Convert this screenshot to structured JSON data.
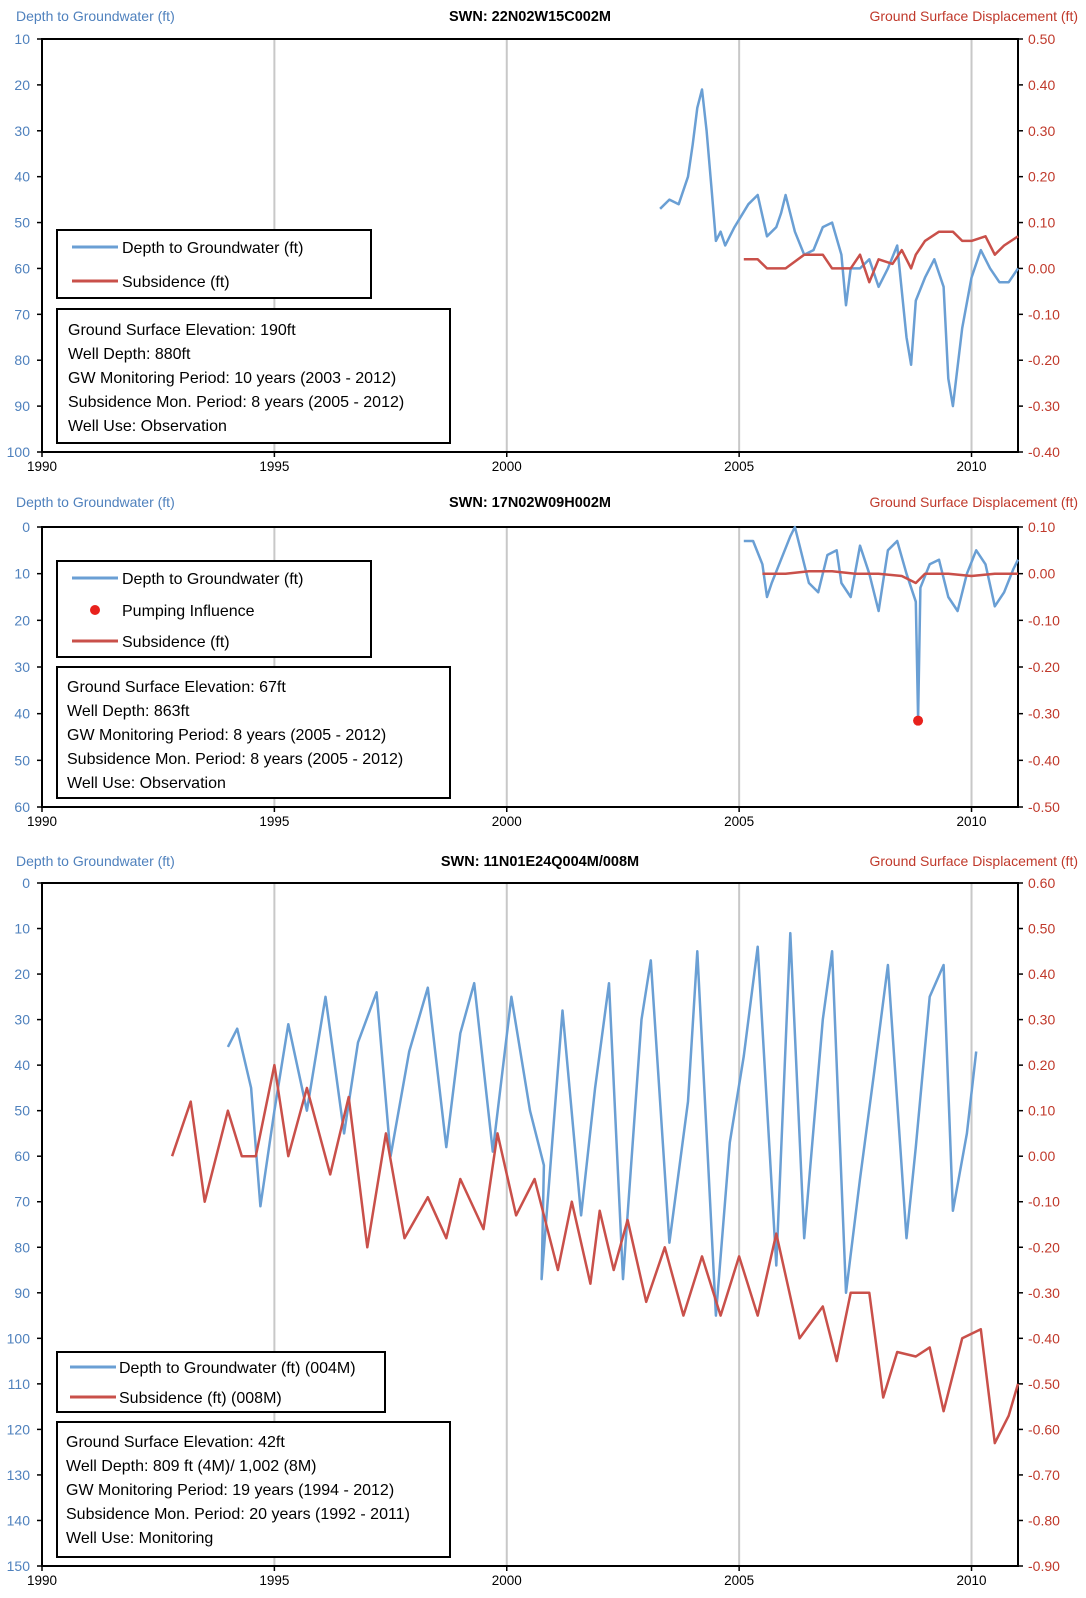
{
  "figure": {
    "axis_left_label": "Depth to Groundwater (ft)",
    "axis_right_label": "Ground Surface Displacement (ft)",
    "colors": {
      "groundwater": "#6a9fd4",
      "subsidence": "#c9504a",
      "pumping": "#e8211c",
      "left_axis_text": "#4f81bd",
      "right_axis_text": "#c0392b"
    }
  },
  "chart_data": [
    {
      "type": "line",
      "title": "SWN: 22N02W15C002M",
      "ylabel_left": "Depth to Groundwater (ft)",
      "ylabel_right": "Ground Surface Displacement (ft)",
      "xlim": [
        1990,
        2011
      ],
      "ylim_left": [
        100,
        10
      ],
      "ylim_right": [
        -0.4,
        0.5
      ],
      "x_ticks": [
        1990,
        1995,
        2000,
        2005,
        2010
      ],
      "y_ticks_left": [
        10,
        20,
        30,
        40,
        50,
        60,
        70,
        80,
        90,
        100
      ],
      "y_ticks_right": [
        "0.50",
        "0.40",
        "0.30",
        "0.20",
        "0.10",
        "0.00",
        "-0.10",
        "-0.20",
        "-0.30",
        "-0.40"
      ],
      "grid": "vertical",
      "legend": [
        "Depth to Groundwater (ft)",
        "Subsidence (ft)"
      ],
      "info": [
        "Ground Surface Elevation: 190ft",
        "Well Depth: 880ft",
        "GW Monitoring Period: 10 years (2003 - 2012)",
        "Subsidence Mon. Period: 8 years (2005 - 2012)",
        "Well Use: Observation"
      ],
      "series": [
        {
          "name": "Depth to Groundwater (ft)",
          "axis": "left",
          "x": [
            2003.3,
            2003.5,
            2003.7,
            2003.9,
            2004.0,
            2004.1,
            2004.2,
            2004.3,
            2004.4,
            2004.5,
            2004.6,
            2004.7,
            2004.8,
            2004.9,
            2005.2,
            2005.4,
            2005.6,
            2005.8,
            2005.9,
            2006.0,
            2006.2,
            2006.4,
            2006.6,
            2006.8,
            2007.0,
            2007.2,
            2007.3,
            2007.4,
            2007.6,
            2007.8,
            2008.0,
            2008.2,
            2008.4,
            2008.6,
            2008.7,
            2008.8,
            2009.0,
            2009.2,
            2009.4,
            2009.5,
            2009.6,
            2009.8,
            2010.0,
            2010.2,
            2010.4,
            2010.6,
            2010.8,
            2011.0
          ],
          "y": [
            47,
            45,
            46,
            40,
            33,
            25,
            21,
            30,
            42,
            54,
            52,
            55,
            53,
            51,
            46,
            44,
            53,
            51,
            48,
            44,
            52,
            57,
            56,
            51,
            50,
            57,
            68,
            60,
            60,
            58,
            64,
            60,
            55,
            75,
            81,
            67,
            62,
            58,
            64,
            84,
            90,
            73,
            62,
            56,
            60,
            63,
            63,
            60
          ]
        },
        {
          "name": "Subsidence (ft)",
          "axis": "right",
          "x": [
            2005.1,
            2005.4,
            2005.6,
            2006.0,
            2006.4,
            2006.8,
            2007.0,
            2007.4,
            2007.6,
            2007.8,
            2008.0,
            2008.3,
            2008.5,
            2008.7,
            2008.8,
            2009.0,
            2009.3,
            2009.6,
            2009.8,
            2010.0,
            2010.3,
            2010.5,
            2010.7,
            2011.0
          ],
          "y": [
            0.02,
            0.02,
            0.0,
            0.0,
            0.03,
            0.03,
            0.0,
            0.0,
            0.03,
            -0.03,
            0.02,
            0.01,
            0.04,
            0.0,
            0.03,
            0.06,
            0.08,
            0.08,
            0.06,
            0.06,
            0.07,
            0.03,
            0.05,
            0.07
          ]
        }
      ]
    },
    {
      "type": "line",
      "title": "SWN: 17N02W09H002M",
      "ylabel_left": "Depth to Groundwater (ft)",
      "ylabel_right": "Ground Surface Displacement (ft)",
      "xlim": [
        1990,
        2011
      ],
      "ylim_left": [
        60,
        0
      ],
      "ylim_right": [
        -0.5,
        0.1
      ],
      "x_ticks": [
        1990,
        1995,
        2000,
        2005,
        2010
      ],
      "y_ticks_left": [
        0,
        10,
        20,
        30,
        40,
        50,
        60
      ],
      "y_ticks_right": [
        "0.10",
        "0.00",
        "-0.10",
        "-0.20",
        "-0.30",
        "-0.40",
        "-0.50"
      ],
      "grid": "vertical",
      "legend": [
        "Depth to Groundwater (ft)",
        "Pumping Influence",
        "Subsidence (ft)"
      ],
      "info": [
        "Ground Surface Elevation: 67ft",
        "Well Depth: 863ft",
        "GW Monitoring Period: 8 years (2005 - 2012)",
        "Subsidence Mon. Period: 8 years (2005 - 2012)",
        "Well Use: Observation"
      ],
      "series": [
        {
          "name": "Depth to Groundwater (ft)",
          "axis": "left",
          "x": [
            2005.1,
            2005.3,
            2005.5,
            2005.6,
            2005.7,
            2005.9,
            2006.1,
            2006.2,
            2006.3,
            2006.5,
            2006.7,
            2006.9,
            2007.1,
            2007.2,
            2007.4,
            2007.6,
            2007.8,
            2008.0,
            2008.2,
            2008.4,
            2008.6,
            2008.8,
            2008.85,
            2008.9,
            2009.1,
            2009.3,
            2009.5,
            2009.7,
            2009.9,
            2010.1,
            2010.3,
            2010.5,
            2010.7,
            2010.9,
            2011.0
          ],
          "y": [
            3,
            3,
            8,
            15,
            12,
            7,
            2,
            0,
            4,
            12,
            14,
            6,
            5,
            12,
            15,
            4,
            10,
            18,
            5,
            3,
            10,
            16,
            41,
            13,
            8,
            7,
            15,
            18,
            10,
            5,
            8,
            17,
            14,
            9,
            7
          ]
        },
        {
          "name": "Subsidence (ft)",
          "axis": "right",
          "x": [
            2005.5,
            2006.0,
            2006.5,
            2007.0,
            2007.5,
            2008.0,
            2008.5,
            2008.8,
            2009.0,
            2009.5,
            2010.0,
            2010.5,
            2011.0
          ],
          "y": [
            0.0,
            0.0,
            0.005,
            0.005,
            0.0,
            0.0,
            -0.005,
            -0.02,
            0.0,
            0.0,
            -0.005,
            0.0,
            0.0
          ]
        },
        {
          "name": "Pumping Influence",
          "axis": "left",
          "type": "scatter",
          "x": [
            2008.85
          ],
          "y": [
            41.5
          ]
        }
      ]
    },
    {
      "type": "line",
      "title": "SWN: 11N01E24Q004M/008M",
      "ylabel_left": "Depth to Groundwater (ft)",
      "ylabel_right": "Ground Surface Displacement (ft)",
      "xlim": [
        1990,
        2011
      ],
      "ylim_left": [
        150,
        0
      ],
      "ylim_right": [
        -0.9,
        0.6
      ],
      "x_ticks": [
        1990,
        1995,
        2000,
        2005,
        2010
      ],
      "y_ticks_left": [
        0,
        10,
        20,
        30,
        40,
        50,
        60,
        70,
        80,
        90,
        100,
        110,
        120,
        130,
        140,
        150
      ],
      "y_ticks_right": [
        "0.60",
        "0.50",
        "0.40",
        "0.30",
        "0.20",
        "0.10",
        "0.00",
        "-0.10",
        "-0.20",
        "-0.30",
        "-0.40",
        "-0.50",
        "-0.60",
        "-0.70",
        "-0.80",
        "-0.90"
      ],
      "grid": "vertical",
      "legend": [
        "Depth to Groundwater (ft) (004M)",
        "Subsidence (ft) (008M)"
      ],
      "info": [
        "Ground Surface Elevation: 42ft",
        "Well Depth: 809 ft (4M)/ 1,002 (8M)",
        "GW Monitoring Period: 19 years (1994 - 2012)",
        "Subsidence Mon. Period: 20 years (1992 - 2011)",
        "Well Use: Monitoring"
      ],
      "series": [
        {
          "name": "Depth to Groundwater (ft) (004M)",
          "axis": "left",
          "x": [
            1994.0,
            1994.2,
            1994.5,
            1994.7,
            1995.0,
            1995.3,
            1995.7,
            1996.1,
            1996.5,
            1996.8,
            1997.2,
            1997.5,
            1997.9,
            1998.3,
            1998.7,
            1999.0,
            1999.3,
            1999.7,
            2000.1,
            2000.5,
            2000.8,
            2000.75,
            2001.2,
            2001.6,
            2001.9,
            2002.2,
            2002.5,
            2002.9,
            2003.1,
            2003.5,
            2003.9,
            2004.1,
            2004.5,
            2004.8,
            2005.1,
            2005.4,
            2005.8,
            2006.1,
            2006.4,
            2006.8,
            2007.0,
            2007.3,
            2007.6,
            2007.9,
            2008.2,
            2008.6,
            2008.8,
            2009.1,
            2009.4,
            2009.6,
            2009.9,
            2010.1
          ],
          "y": [
            36,
            32,
            45,
            71,
            50,
            31,
            50,
            25,
            55,
            35,
            24,
            60,
            37,
            23,
            58,
            33,
            22,
            59,
            25,
            50,
            62,
            87,
            28,
            73,
            45,
            22,
            87,
            30,
            17,
            79,
            48,
            15,
            95,
            57,
            38,
            14,
            84,
            11,
            78,
            30,
            15,
            90,
            65,
            42,
            18,
            78,
            58,
            25,
            18,
            72,
            55,
            37
          ]
        },
        {
          "name": "Subsidence (ft) (008M)",
          "axis": "right",
          "x": [
            1992.8,
            1993.2,
            1993.5,
            1994.0,
            1994.3,
            1994.6,
            1995.0,
            1995.3,
            1995.7,
            1996.2,
            1996.6,
            1997.0,
            1997.4,
            1997.8,
            1998.3,
            1998.7,
            1999.0,
            1999.5,
            1999.8,
            2000.2,
            2000.6,
            2001.1,
            2001.4,
            2001.8,
            2002.0,
            2002.3,
            2002.6,
            2003.0,
            2003.4,
            2003.8,
            2004.2,
            2004.6,
            2005.0,
            2005.4,
            2005.8,
            2006.3,
            2006.8,
            2007.1,
            2007.4,
            2007.8,
            2008.1,
            2008.4,
            2008.8,
            2009.1,
            2009.4,
            2009.8,
            2010.2,
            2010.5,
            2010.8,
            2011.0
          ],
          "y": [
            0.0,
            0.12,
            -0.1,
            0.1,
            0.0,
            0.0,
            0.2,
            0.0,
            0.15,
            -0.04,
            0.13,
            -0.2,
            0.05,
            -0.18,
            -0.09,
            -0.18,
            -0.05,
            -0.16,
            0.05,
            -0.13,
            -0.05,
            -0.25,
            -0.1,
            -0.28,
            -0.12,
            -0.25,
            -0.14,
            -0.32,
            -0.2,
            -0.35,
            -0.22,
            -0.35,
            -0.22,
            -0.35,
            -0.17,
            -0.4,
            -0.33,
            -0.45,
            -0.3,
            -0.3,
            -0.53,
            -0.43,
            -0.44,
            -0.42,
            -0.56,
            -0.4,
            -0.38,
            -0.63,
            -0.57,
            -0.5
          ]
        }
      ]
    }
  ]
}
